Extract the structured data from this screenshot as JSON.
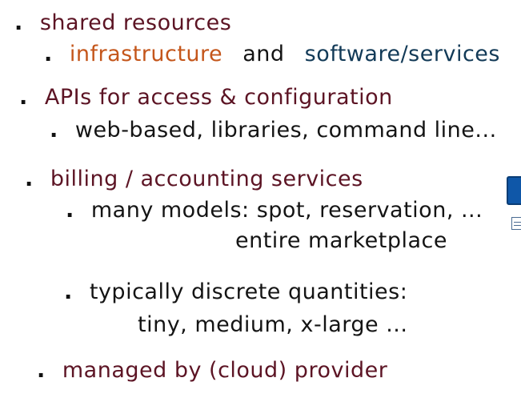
{
  "items": [
    {
      "bullet": ".",
      "text": "shared resources",
      "sub": {
        "bullet": ".",
        "part1": "infrastructure",
        "part2": "and",
        "part3": "software/services"
      }
    },
    {
      "bullet": ".",
      "text": "APIs for access & configuration",
      "sub": {
        "bullet": ".",
        "text": "web-based, libraries, command line..."
      }
    },
    {
      "bullet": ".",
      "text": "billing / accounting services",
      "subs": [
        {
          "bullet": ".",
          "line1": "many models: spot, reservation, ...",
          "line2": "entire marketplace"
        },
        {
          "bullet": ".",
          "line1": "typically discrete quantities:",
          "line2": "tiny, medium, x-large ..."
        }
      ]
    },
    {
      "bullet": ".",
      "text": "managed by (cloud) provider"
    }
  ],
  "colors": {
    "heading": "#5c1424",
    "infrastructure": "#c4561b",
    "and": "#141414",
    "software": "#123a57",
    "text": "#111111",
    "edge_button": "#0f57a8"
  },
  "icons": {
    "edge_button": "blue-button-icon",
    "edge_doc": "document-icon"
  }
}
